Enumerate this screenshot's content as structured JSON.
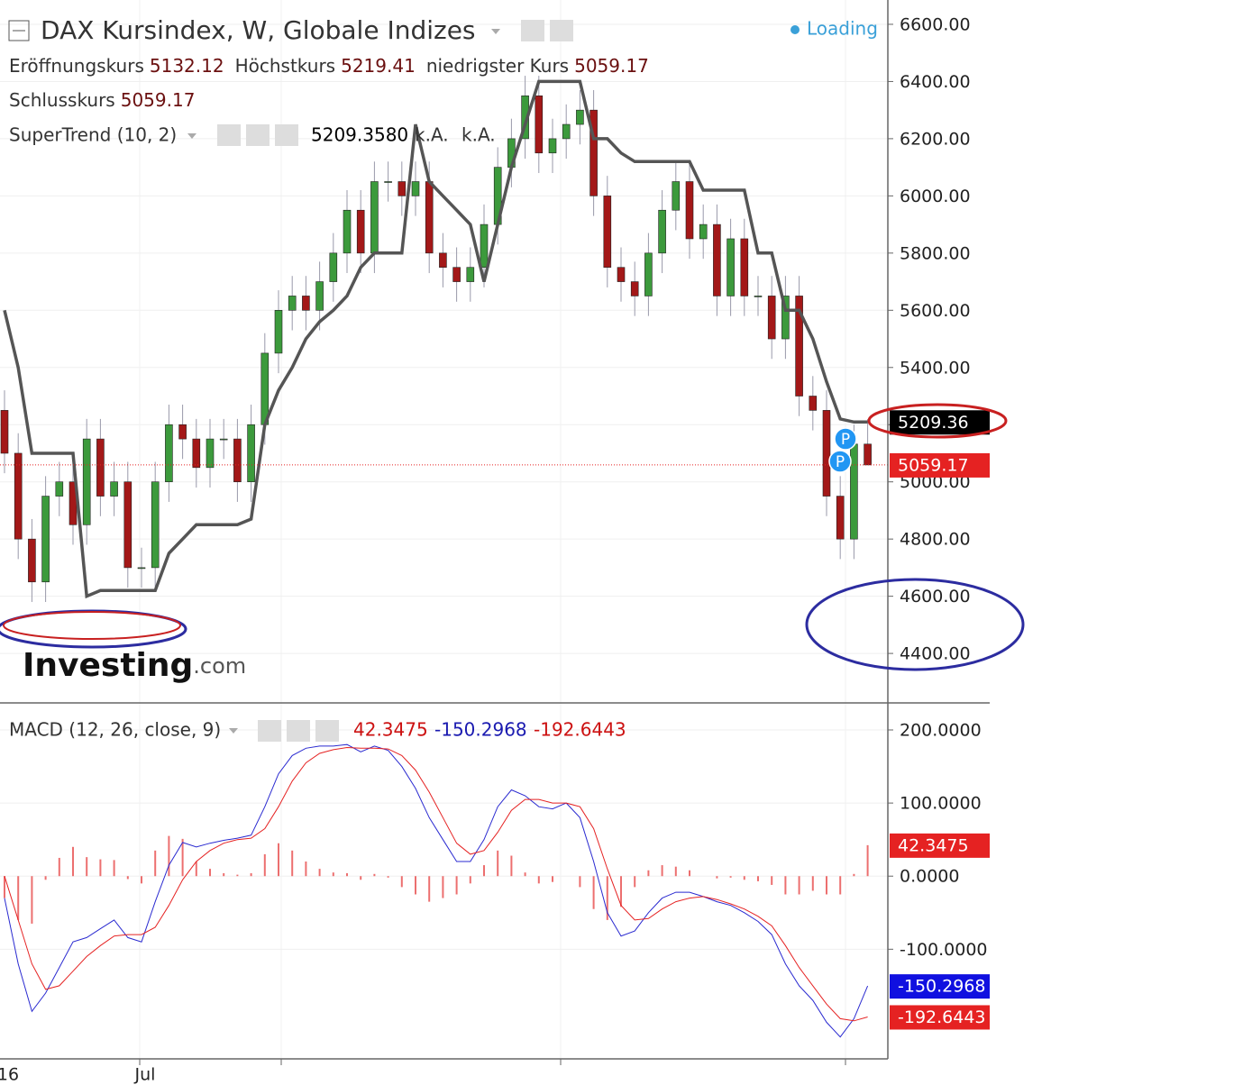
{
  "chart_data": [
    {
      "type": "candlestick",
      "title": "DAX Kursindex, W, Globale Indizes",
      "status": "Loading",
      "ohlc_labels": {
        "open": "Eröffnungskurs",
        "high": "Höchstkurs",
        "low": "niedrigster Kurs",
        "close": "Schlusskurs"
      },
      "categories": [
        "16",
        null,
        null,
        null,
        null,
        null,
        null,
        null,
        null,
        null,
        "Jul",
        null,
        null,
        null,
        null,
        null,
        null,
        null,
        null,
        null,
        null,
        null,
        null,
        null,
        null,
        null,
        null,
        null,
        null,
        null,
        null,
        null,
        null,
        null,
        null,
        null,
        null,
        null,
        null,
        null,
        null,
        null,
        null,
        null,
        null,
        null,
        null,
        null,
        null,
        null,
        null,
        null,
        null,
        null,
        null,
        null,
        null,
        null,
        null,
        null,
        null,
        null,
        null,
        null
      ],
      "open": [
        5250,
        5100,
        4800,
        4650,
        4950,
        5000,
        4850,
        5150,
        4950,
        5000,
        4700,
        4700,
        5000,
        5200,
        5150,
        5050,
        5150,
        5150,
        5000,
        5200,
        5450,
        5600,
        5650,
        5600,
        5700,
        5800,
        5950,
        5800,
        6050,
        6050,
        6000,
        6050,
        5800,
        5750,
        5700,
        5750,
        5900,
        6100,
        6200,
        6350,
        6150,
        6200,
        6250,
        6300,
        6000,
        5750,
        5700,
        5650,
        5800,
        5950,
        6050,
        5850,
        5900,
        5650,
        5850,
        5650,
        5650,
        5500,
        5650,
        5300,
        5250,
        4950,
        4800,
        5132.12
      ],
      "high": [
        5320,
        5170,
        4870,
        5020,
        5070,
        5070,
        5220,
        5220,
        5070,
        5070,
        4770,
        5070,
        5270,
        5270,
        5220,
        5220,
        5220,
        5220,
        5270,
        5520,
        5670,
        5720,
        5720,
        5770,
        5870,
        6020,
        6020,
        6120,
        6120,
        6120,
        6120,
        6120,
        5870,
        5820,
        5820,
        5970,
        6170,
        6270,
        6420,
        6420,
        6270,
        6320,
        6370,
        6370,
        6070,
        5820,
        5770,
        5870,
        6020,
        6120,
        6120,
        5970,
        5970,
        5920,
        5920,
        5720,
        5720,
        5720,
        5720,
        5370,
        5320,
        5020,
        5200,
        5219.41
      ],
      "low": [
        5030,
        4730,
        4580,
        4580,
        4880,
        4780,
        4780,
        4880,
        4880,
        4630,
        4630,
        4630,
        4930,
        5080,
        4980,
        4980,
        5080,
        4930,
        4930,
        5130,
        5380,
        5530,
        5530,
        5530,
        5630,
        5730,
        5730,
        5730,
        5980,
        5930,
        5930,
        5730,
        5680,
        5630,
        5630,
        5680,
        5830,
        6030,
        6130,
        6080,
        6080,
        6130,
        6180,
        5930,
        5680,
        5630,
        5580,
        5580,
        5730,
        5880,
        5780,
        5780,
        5580,
        5580,
        5580,
        5580,
        5430,
        5430,
        5230,
        5180,
        4880,
        4730,
        4730,
        5059.17
      ],
      "close": [
        5100,
        4800,
        4650,
        4950,
        5000,
        4850,
        5150,
        4950,
        5000,
        4700,
        4700,
        5000,
        5200,
        5150,
        5050,
        5150,
        5150,
        5000,
        5200,
        5450,
        5600,
        5650,
        5600,
        5700,
        5800,
        5950,
        5800,
        6050,
        6050,
        6000,
        6050,
        5800,
        5750,
        5700,
        5750,
        5900,
        6100,
        6200,
        6350,
        6150,
        6200,
        6250,
        6300,
        6000,
        5750,
        5700,
        5650,
        5800,
        5950,
        6050,
        5850,
        5900,
        5650,
        5850,
        5650,
        5650,
        5500,
        5650,
        5300,
        5250,
        4950,
        4800,
        5132.12,
        5059.17
      ],
      "up_color": "#3c9a3c",
      "down_color": "#a31818",
      "close_line_color": "#e52222",
      "supertrend": {
        "name": "SuperTrend (10, 2)",
        "color": "#555555",
        "values": [
          5600,
          5400,
          5100,
          5100,
          5100,
          5100,
          4600,
          4620,
          4620,
          4620,
          4620,
          4620,
          4750,
          4800,
          4850,
          4850,
          4850,
          4850,
          4870,
          5200,
          5320,
          5400,
          5500,
          5560,
          5600,
          5650,
          5750,
          5800,
          5800,
          5800,
          6250,
          6050,
          6000,
          5950,
          5900,
          5700,
          5900,
          6100,
          6250,
          6400,
          6400,
          6400,
          6400,
          6200,
          6200,
          6150,
          6120,
          6120,
          6120,
          6120,
          6120,
          6020,
          6020,
          6020,
          6020,
          5800,
          5800,
          5600,
          5600,
          5500,
          5350,
          5220,
          5209.358,
          5209.358
        ],
        "legend_value": "5209.3580",
        "axis_value": "5209.36",
        "na_labels": [
          "k.A.",
          "k.A."
        ]
      },
      "markers": [
        "P",
        "P"
      ],
      "watermark": [
        "Investing",
        ".com"
      ],
      "ylim": [
        4227,
        6685
      ],
      "yticks": [
        {
          "value": 4400,
          "label": "4400.00"
        },
        {
          "value": 4600,
          "label": "4600.00"
        },
        {
          "value": 4800,
          "label": "4800.00"
        },
        {
          "value": 5000,
          "label": "5000.00"
        },
        {
          "value": 5200,
          "label": "5200.00"
        },
        {
          "value": 5400,
          "label": "5400.00"
        },
        {
          "value": 5600,
          "label": "5600.00"
        },
        {
          "value": 5800,
          "label": "5800.00"
        },
        {
          "value": 6000,
          "label": "6000.00"
        },
        {
          "value": 6200,
          "label": "6200.00"
        },
        {
          "value": 6400,
          "label": "6400.00"
        },
        {
          "value": 6600,
          "label": "6600.00"
        }
      ],
      "grid": true
    },
    {
      "type": "macd",
      "title": "MACD (12, 26, close, 9)",
      "histogram": {
        "color": "#ec6f6f",
        "last_label": "42.3475",
        "values": [
          -30,
          -60,
          -65,
          -5,
          25,
          40,
          26,
          23,
          22,
          -4,
          -10,
          35,
          55,
          51,
          20,
          10,
          4,
          2,
          4,
          30,
          45,
          35,
          20,
          10,
          5,
          4,
          -5,
          3,
          -2,
          -15,
          -25,
          -35,
          -30,
          -25,
          -10,
          15,
          35,
          28,
          5,
          -10,
          -8,
          0,
          -15,
          -45,
          -60,
          -42,
          -15,
          8,
          15,
          13,
          8,
          0,
          -3,
          -2,
          -5,
          -7,
          -12,
          -25,
          -25,
          -20,
          -25,
          -25,
          3,
          42.3475
        ]
      },
      "series": [
        {
          "color": "#2a2ad0",
          "last_label": "-150.2968",
          "values": [
            -30,
            -120,
            -185,
            -160,
            -125,
            -90,
            -84,
            -72,
            -60,
            -84,
            -90,
            -35,
            15,
            46,
            40,
            45,
            49,
            52,
            56,
            95,
            140,
            165,
            175,
            178,
            178,
            180,
            170,
            178,
            172,
            150,
            120,
            80,
            50,
            20,
            20,
            50,
            95,
            118,
            110,
            95,
            92,
            100,
            80,
            20,
            -50,
            -82,
            -75,
            -50,
            -30,
            -22,
            -22,
            -28,
            -35,
            -40,
            -50,
            -62,
            -80,
            -120,
            -150,
            -170,
            -200,
            -220,
            -195,
            -150.2968
          ]
        },
        {
          "color": "#e52222",
          "last_label": "-192.6443",
          "values": [
            0,
            -60,
            -120,
            -155,
            -150,
            -130,
            -110,
            -95,
            -82,
            -80,
            -80,
            -70,
            -40,
            -5,
            20,
            35,
            45,
            50,
            52,
            65,
            95,
            130,
            155,
            168,
            173,
            176,
            175,
            175,
            174,
            165,
            145,
            115,
            80,
            45,
            30,
            35,
            60,
            90,
            105,
            105,
            100,
            100,
            95,
            65,
            10,
            -40,
            -60,
            -58,
            -45,
            -35,
            -30,
            -28,
            -32,
            -38,
            -45,
            -55,
            -68,
            -95,
            -125,
            -150,
            -175,
            -195,
            -198,
            -192.6443
          ]
        }
      ],
      "ylim": [
        -250,
        237
      ],
      "yticks": [
        {
          "value": -100,
          "label": "-100.0000"
        },
        {
          "value": 0,
          "label": "0.0000"
        },
        {
          "value": 100,
          "label": "100.0000"
        },
        {
          "value": 200,
          "label": "200.0000"
        }
      ],
      "grid": true
    }
  ]
}
